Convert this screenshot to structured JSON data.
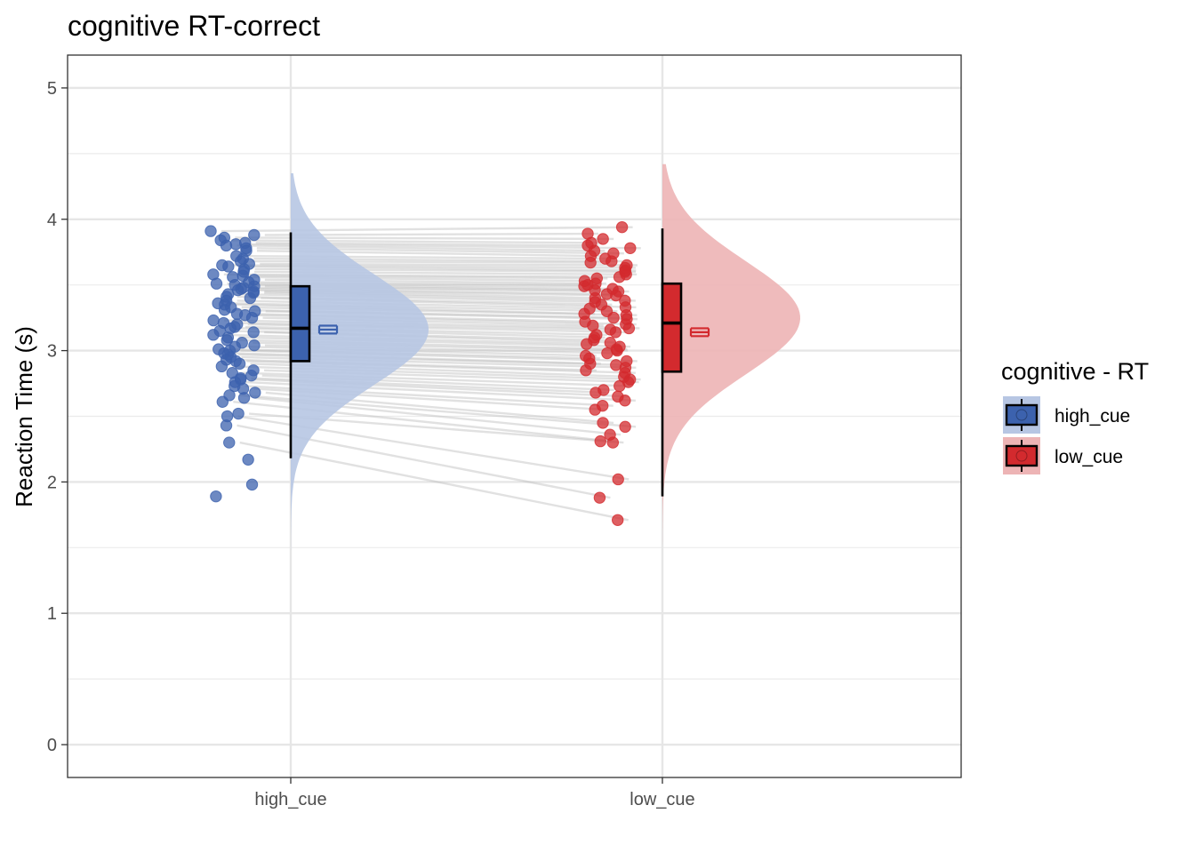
{
  "chart_data": {
    "type": "raincloud",
    "title": "cognitive RT-correct",
    "xlabel": "",
    "ylabel": "Reaction Time (s)",
    "ylim": [
      -0.25,
      5.25
    ],
    "yticks": [
      0,
      1,
      2,
      3,
      4,
      5
    ],
    "grid": true,
    "categories": [
      "high_cue",
      "low_cue"
    ],
    "legend": {
      "title": "cognitive  - RT",
      "position": "right"
    },
    "series": [
      {
        "name": "high_cue",
        "color": "#3C62AE",
        "fill": "#B7C6E3",
        "box": {
          "min": 2.18,
          "q1": 2.92,
          "median": 3.17,
          "q3": 3.49,
          "max": 3.9
        },
        "mean": 3.16,
        "se": 0.03,
        "density": {
          "mean": 3.16,
          "sd": 0.42,
          "range": [
            1.45,
            4.35
          ]
        }
      },
      {
        "name": "low_cue",
        "color": "#D32A2E",
        "fill": "#EDB4B5",
        "box": {
          "min": 1.89,
          "q1": 2.84,
          "median": 3.21,
          "q3": 3.51,
          "max": 3.93
        },
        "mean": 3.14,
        "se": 0.03,
        "density": {
          "mean": 3.25,
          "sd": 0.43,
          "range": [
            1.2,
            4.42
          ]
        }
      }
    ],
    "points": {
      "high_cue": [
        3.91,
        3.88,
        3.86,
        3.84,
        3.82,
        3.81,
        3.8,
        3.78,
        3.76,
        3.72,
        3.7,
        3.68,
        3.66,
        3.65,
        3.64,
        3.62,
        3.6,
        3.58,
        3.57,
        3.56,
        3.54,
        3.52,
        3.51,
        3.5,
        3.49,
        3.48,
        3.47,
        3.46,
        3.45,
        3.44,
        3.43,
        3.41,
        3.4,
        3.38,
        3.36,
        3.35,
        3.33,
        3.31,
        3.3,
        3.28,
        3.27,
        3.25,
        3.23,
        3.21,
        3.2,
        3.18,
        3.17,
        3.15,
        3.14,
        3.12,
        3.1,
        3.08,
        3.06,
        3.04,
        3.03,
        3.01,
        3.0,
        2.98,
        2.97,
        2.95,
        2.93,
        2.92,
        2.9,
        2.88,
        2.85,
        2.83,
        2.81,
        2.79,
        2.78,
        2.76,
        2.73,
        2.71,
        2.68,
        2.66,
        2.64,
        2.61,
        2.52,
        2.5,
        2.43,
        2.3,
        2.17,
        1.98,
        1.89
      ],
      "low_cue": [
        3.94,
        3.89,
        3.85,
        3.82,
        3.8,
        3.78,
        3.76,
        3.74,
        3.72,
        3.7,
        3.68,
        3.67,
        3.65,
        3.63,
        3.61,
        3.6,
        3.58,
        3.56,
        3.55,
        3.53,
        3.51,
        3.5,
        3.49,
        3.47,
        3.46,
        3.45,
        3.43,
        3.42,
        3.4,
        3.38,
        3.37,
        3.35,
        3.33,
        3.32,
        3.3,
        3.28,
        3.27,
        3.25,
        3.24,
        3.22,
        3.2,
        3.19,
        3.17,
        3.16,
        3.14,
        3.12,
        3.1,
        3.08,
        3.06,
        3.05,
        3.03,
        3.01,
        3.0,
        2.98,
        2.96,
        2.94,
        2.92,
        2.9,
        2.89,
        2.87,
        2.85,
        2.83,
        2.8,
        2.78,
        2.76,
        2.73,
        2.7,
        2.68,
        2.65,
        2.62,
        2.58,
        2.55,
        2.45,
        2.42,
        2.36,
        2.31,
        2.3,
        2.02,
        1.88,
        1.71
      ]
    }
  }
}
